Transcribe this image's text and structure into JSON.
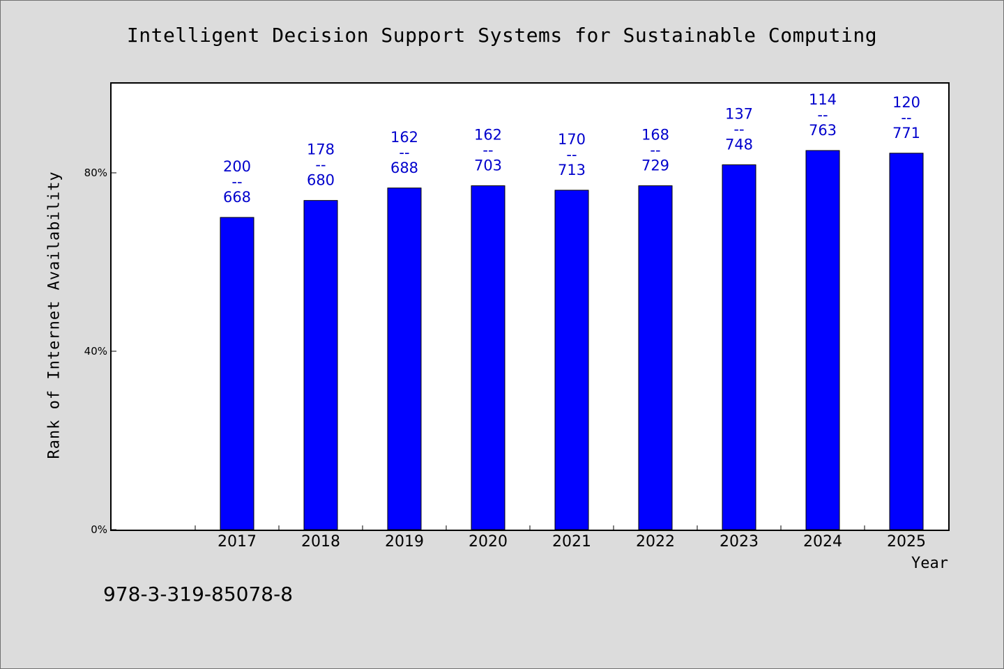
{
  "chart_data": {
    "type": "bar",
    "title": "Intelligent Decision Support Systems for Sustainable Computing",
    "xlabel": "Year",
    "ylabel": "Rank of Internet Availability",
    "categories": [
      "2017",
      "2018",
      "2019",
      "2020",
      "2021",
      "2022",
      "2023",
      "2024",
      "2025"
    ],
    "values": [
      70.0,
      73.8,
      76.6,
      77.1,
      76.1,
      77.1,
      81.8,
      85.0,
      84.4
    ],
    "bar_labels": [
      {
        "top": "200",
        "sep": "--",
        "bottom": "668"
      },
      {
        "top": "178",
        "sep": "--",
        "bottom": "680"
      },
      {
        "top": "162",
        "sep": "--",
        "bottom": "688"
      },
      {
        "top": "162",
        "sep": "--",
        "bottom": "703"
      },
      {
        "top": "170",
        "sep": "--",
        "bottom": "713"
      },
      {
        "top": "168",
        "sep": "--",
        "bottom": "729"
      },
      {
        "top": "137",
        "sep": "--",
        "bottom": "748"
      },
      {
        "top": "114",
        "sep": "--",
        "bottom": "763"
      },
      {
        "top": "120",
        "sep": "--",
        "bottom": "771"
      }
    ],
    "yticks": [
      {
        "value": 0,
        "label": "0%"
      },
      {
        "value": 40,
        "label": "40%"
      },
      {
        "value": 80,
        "label": "80%"
      }
    ],
    "ylim": [
      0,
      100
    ],
    "grid": false,
    "colors": {
      "bar": "#0000ff",
      "bar_outline": "#000000",
      "label": "#0000cc"
    }
  },
  "footer": {
    "isbn": "978-3-319-85078-8"
  }
}
